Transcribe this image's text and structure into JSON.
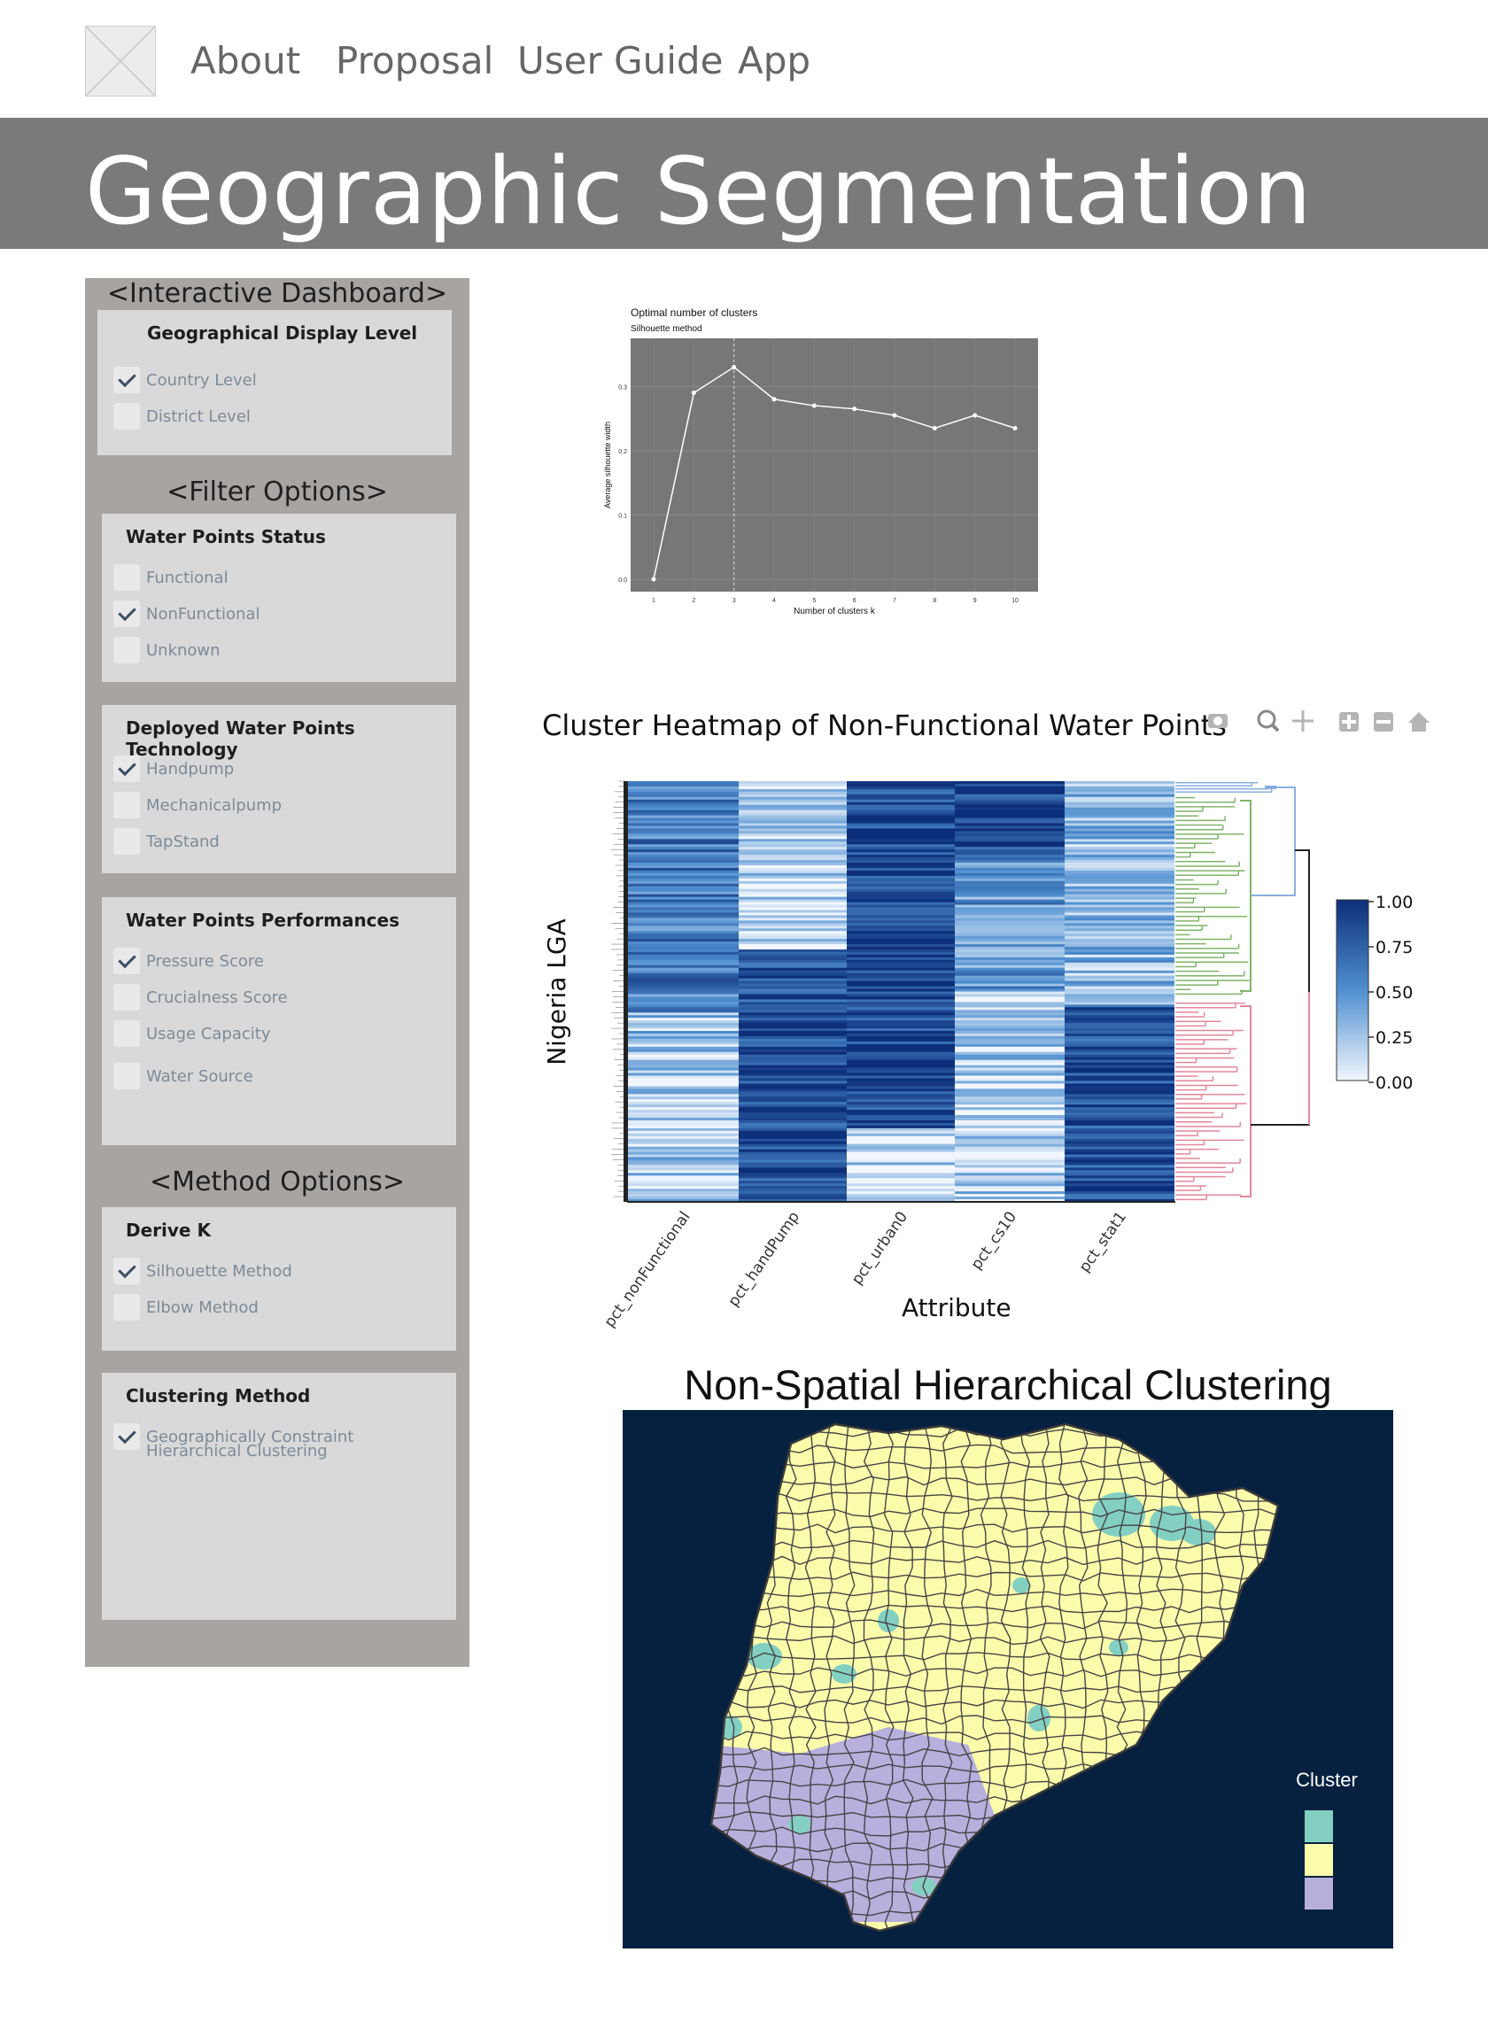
{
  "nav": {
    "items": [
      "About",
      "Proposal",
      "User Guide",
      "App"
    ]
  },
  "banner": {
    "title": "Geographic Segmentation"
  },
  "sidebar": {
    "dashboard_title": "<Interactive Dashboard>",
    "display_level": {
      "title": "Geographical Display Level",
      "options": [
        {
          "label": "Country Level",
          "checked": true
        },
        {
          "label": "District Level",
          "checked": false
        }
      ]
    },
    "filter_title": "<Filter Options>",
    "status": {
      "title": "Water Points Status",
      "options": [
        {
          "label": "Functional",
          "checked": false
        },
        {
          "label": "NonFunctional",
          "checked": true
        },
        {
          "label": "Unknown",
          "checked": false
        }
      ]
    },
    "technology": {
      "title": "Deployed Water Points Technology",
      "options": [
        {
          "label": "Handpump",
          "checked": true
        },
        {
          "label": "Mechanicalpump",
          "checked": false
        },
        {
          "label": "TapStand",
          "checked": false
        }
      ]
    },
    "performance": {
      "title": "Water Points Performances",
      "options": [
        {
          "label": "Pressure Score",
          "checked": true
        },
        {
          "label": "Crucialness Score",
          "checked": false
        },
        {
          "label": "Usage Capacity",
          "checked": false
        },
        {
          "label": "Water Source",
          "checked": false
        }
      ]
    },
    "method_title": "<Method Options>",
    "derive_k": {
      "title": "Derive K",
      "options": [
        {
          "label": "Silhouette Method",
          "checked": true
        },
        {
          "label": "Elbow Method",
          "checked": false
        }
      ]
    },
    "clustering": {
      "title": "Clustering Method",
      "option_line1": "Geographically Constraint",
      "option_line2": "Hierarchical Clustering",
      "checked": true
    }
  },
  "silhouette": {
    "chart_data": {
      "type": "line",
      "title": "Optimal number of clusters",
      "subtitle": "Silhouette method",
      "xlabel": "Number of clusters k",
      "ylabel": "Average silhouette width",
      "x": [
        1,
        2,
        3,
        4,
        5,
        6,
        7,
        8,
        9,
        10
      ],
      "y": [
        0.0,
        0.29,
        0.33,
        0.28,
        0.27,
        0.265,
        0.255,
        0.235,
        0.255,
        0.235
      ],
      "y_ticks": [
        "0.0",
        "0.1",
        "0.2",
        "0.3"
      ],
      "ylim": [
        0,
        0.35
      ],
      "optimal_k": 3,
      "background": "#777777",
      "line_color": "#ffffff"
    }
  },
  "heatmap": {
    "title": "Cluster Heatmap of Non-Functional Water Points",
    "ylabel": "Nigeria LGA",
    "xlabel": "Attribute",
    "columns": [
      "pct_nonFunctional",
      "pct_handPump",
      "pct_urban0",
      "pct_cs10",
      "pct_stat1"
    ],
    "legend_ticks": [
      "1.00",
      "0.75",
      "0.50",
      "0.25",
      "0.00"
    ],
    "colors": {
      "low": "#f2f7fd",
      "high": "#0d2f7a"
    },
    "dendrogram_colors": [
      "#8aaee0",
      "#7fb36a",
      "#e3879a"
    ],
    "toolbar_icons": [
      "camera-icon",
      "zoom-icon",
      "pan-icon",
      "zoom-in-icon",
      "zoom-out-icon",
      "reset-home-icon"
    ]
  },
  "cluster_map": {
    "title": "Non-Spatial Hierarchical Clustering",
    "legend_title": "Cluster",
    "legend_colors": [
      "#83d0c2",
      "#fbfcab",
      "#b7b0dd"
    ],
    "background": "#06203f",
    "border": "#454545"
  }
}
